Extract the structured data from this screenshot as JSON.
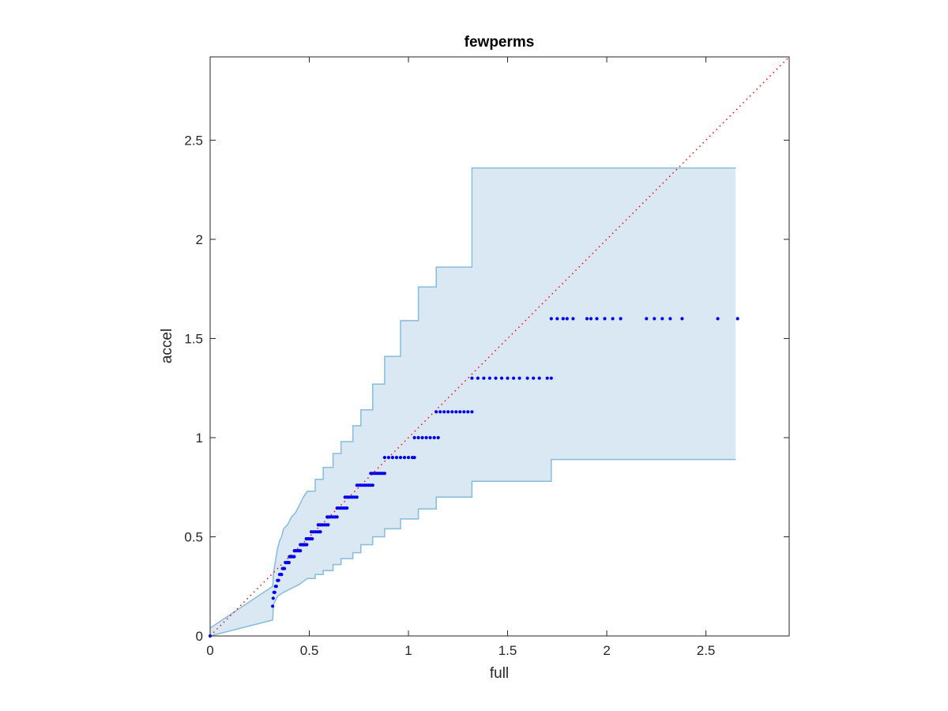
{
  "chart_data": {
    "type": "scatter",
    "title": "fewperms",
    "xlabel": "full",
    "ylabel": "accel",
    "xlim": [
      0,
      2.92
    ],
    "ylim": [
      0,
      2.92
    ],
    "xticks": [
      0,
      0.5,
      1,
      1.5,
      2,
      2.5
    ],
    "xtick_labels": [
      "0",
      "0.5",
      "1",
      "1.5",
      "2",
      "2.5"
    ],
    "yticks": [
      0,
      0.5,
      1,
      1.5,
      2,
      2.5
    ],
    "ytick_labels": [
      "0",
      "0.5",
      "1",
      "1.5",
      "2",
      "2.5"
    ],
    "grid": false,
    "box": true,
    "colors": {
      "points": "#0000ee",
      "band_fill": "#d9e8f3",
      "band_edge": "#86bcdc",
      "diagonal": "#ff0000",
      "axes": "#262626"
    },
    "reference_line": {
      "style": "dotted",
      "from": [
        0,
        0
      ],
      "to": [
        2.92,
        2.92
      ]
    },
    "band_upper": [
      [
        0,
        0.04
      ],
      [
        0.315,
        0.25
      ],
      [
        0.32,
        0.32
      ],
      [
        0.33,
        0.38
      ],
      [
        0.34,
        0.44
      ],
      [
        0.35,
        0.48
      ],
      [
        0.36,
        0.5
      ],
      [
        0.37,
        0.54
      ],
      [
        0.39,
        0.56
      ],
      [
        0.41,
        0.6
      ],
      [
        0.43,
        0.62
      ],
      [
        0.45,
        0.66
      ],
      [
        0.47,
        0.7
      ],
      [
        0.49,
        0.73
      ],
      [
        0.53,
        0.73
      ],
      [
        0.53,
        0.79
      ],
      [
        0.57,
        0.79
      ],
      [
        0.57,
        0.85
      ],
      [
        0.62,
        0.85
      ],
      [
        0.62,
        0.92
      ],
      [
        0.66,
        0.92
      ],
      [
        0.66,
        0.98
      ],
      [
        0.72,
        0.98
      ],
      [
        0.72,
        1.06
      ],
      [
        0.76,
        1.06
      ],
      [
        0.76,
        1.14
      ],
      [
        0.82,
        1.14
      ],
      [
        0.82,
        1.27
      ],
      [
        0.88,
        1.27
      ],
      [
        0.88,
        1.41
      ],
      [
        0.96,
        1.41
      ],
      [
        0.96,
        1.59
      ],
      [
        1.05,
        1.59
      ],
      [
        1.05,
        1.76
      ],
      [
        1.14,
        1.76
      ],
      [
        1.14,
        1.86
      ],
      [
        1.32,
        1.86
      ],
      [
        1.32,
        2.36
      ],
      [
        1.72,
        2.36
      ],
      [
        2.65,
        2.36
      ]
    ],
    "band_lower": [
      [
        2.65,
        0.89
      ],
      [
        1.72,
        0.89
      ],
      [
        1.72,
        0.78
      ],
      [
        1.32,
        0.78
      ],
      [
        1.32,
        0.7
      ],
      [
        1.14,
        0.7
      ],
      [
        1.14,
        0.64
      ],
      [
        1.05,
        0.64
      ],
      [
        1.05,
        0.59
      ],
      [
        0.96,
        0.59
      ],
      [
        0.96,
        0.54
      ],
      [
        0.88,
        0.54
      ],
      [
        0.88,
        0.5
      ],
      [
        0.82,
        0.5
      ],
      [
        0.82,
        0.46
      ],
      [
        0.76,
        0.46
      ],
      [
        0.76,
        0.42
      ],
      [
        0.72,
        0.42
      ],
      [
        0.72,
        0.39
      ],
      [
        0.66,
        0.39
      ],
      [
        0.66,
        0.36
      ],
      [
        0.62,
        0.36
      ],
      [
        0.62,
        0.33
      ],
      [
        0.57,
        0.33
      ],
      [
        0.57,
        0.31
      ],
      [
        0.53,
        0.31
      ],
      [
        0.53,
        0.29
      ],
      [
        0.49,
        0.29
      ],
      [
        0.45,
        0.26
      ],
      [
        0.41,
        0.24
      ],
      [
        0.37,
        0.22
      ],
      [
        0.34,
        0.2
      ],
      [
        0.32,
        0.16
      ],
      [
        0.315,
        0.08
      ],
      [
        0,
        0
      ]
    ],
    "point_segments": [
      {
        "y": 0,
        "x": [
          0
        ]
      },
      {
        "y": 0.15,
        "x": [
          0.315
        ]
      },
      {
        "y": 0.19,
        "x": [
          0.318
        ]
      },
      {
        "y": 0.22,
        "x": [
          0.322,
          0.326
        ]
      },
      {
        "y": 0.25,
        "x": [
          0.33,
          0.334
        ]
      },
      {
        "y": 0.28,
        "x": [
          0.34,
          0.345
        ]
      },
      {
        "y": 0.31,
        "x": [
          0.35,
          0.355,
          0.36
        ]
      },
      {
        "y": 0.34,
        "x": [
          0.365,
          0.37,
          0.375
        ]
      },
      {
        "y": 0.37,
        "x": [
          0.38,
          0.386,
          0.392,
          0.398
        ]
      },
      {
        "y": 0.4,
        "x": [
          0.4,
          0.406,
          0.412,
          0.418,
          0.424
        ]
      },
      {
        "y": 0.43,
        "x": [
          0.425,
          0.432,
          0.44,
          0.448,
          0.455
        ]
      },
      {
        "y": 0.46,
        "x": [
          0.455,
          0.463,
          0.471,
          0.479,
          0.487
        ]
      },
      {
        "y": 0.49,
        "x": [
          0.485,
          0.493,
          0.501,
          0.509,
          0.515
        ]
      },
      {
        "y": 0.525,
        "x": [
          0.51,
          0.52,
          0.53,
          0.54,
          0.55,
          0.556
        ]
      },
      {
        "y": 0.56,
        "x": [
          0.545,
          0.555,
          0.565,
          0.575,
          0.585,
          0.595
        ]
      },
      {
        "y": 0.6,
        "x": [
          0.59,
          0.6,
          0.61,
          0.62,
          0.63,
          0.64
        ]
      },
      {
        "y": 0.645,
        "x": [
          0.64,
          0.65,
          0.66,
          0.67,
          0.68,
          0.69
        ]
      },
      {
        "y": 0.7,
        "x": [
          0.68,
          0.69,
          0.7,
          0.71,
          0.72,
          0.73,
          0.74
        ]
      },
      {
        "y": 0.76,
        "x": [
          0.74,
          0.75,
          0.76,
          0.77,
          0.78,
          0.79,
          0.8,
          0.81,
          0.82
        ]
      },
      {
        "y": 0.82,
        "x": [
          0.81,
          0.82,
          0.83,
          0.84,
          0.85,
          0.86,
          0.87,
          0.88
        ]
      },
      {
        "y": 0.9,
        "x": [
          0.88,
          0.9,
          0.92,
          0.94,
          0.96,
          0.98,
          1.0,
          1.02,
          1.03
        ]
      },
      {
        "y": 1.0,
        "x": [
          1.03,
          1.05,
          1.07,
          1.09,
          1.11,
          1.13,
          1.15
        ]
      },
      {
        "y": 1.13,
        "x": [
          1.14,
          1.16,
          1.18,
          1.2,
          1.22,
          1.24,
          1.26,
          1.28,
          1.3,
          1.32
        ]
      },
      {
        "y": 1.3,
        "x": [
          1.32,
          1.35,
          1.38,
          1.41,
          1.44,
          1.47,
          1.5,
          1.53,
          1.56,
          1.6,
          1.63,
          1.66,
          1.7,
          1.72
        ]
      },
      {
        "y": 1.6,
        "x": [
          1.72,
          1.75,
          1.78,
          1.8,
          1.83,
          1.9,
          1.92,
          1.95,
          1.99,
          2.03,
          2.07,
          2.2,
          2.24,
          2.28,
          2.32,
          2.38,
          2.56,
          2.66
        ]
      }
    ]
  }
}
